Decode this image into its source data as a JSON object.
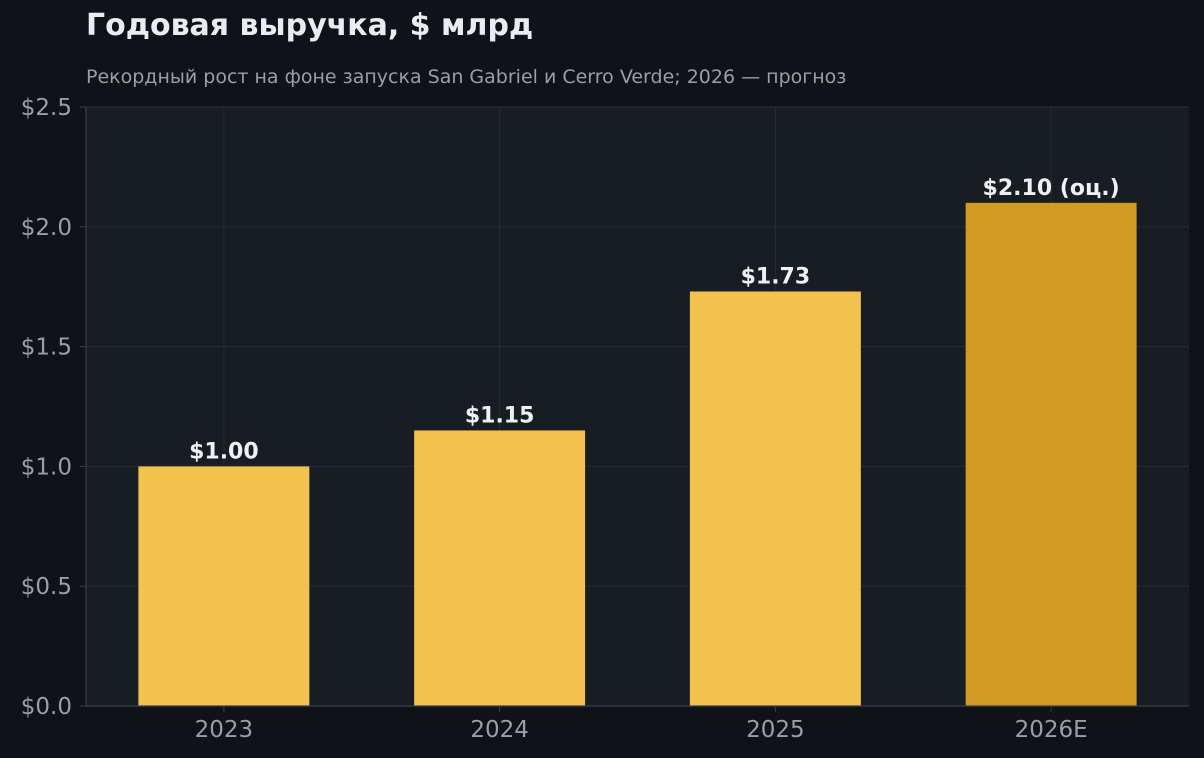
{
  "chart_data": {
    "type": "bar",
    "title": "Годовая выручка, $ млрд",
    "subtitle": "Рекордный рост на фоне запуска San Gabriel и Cerro Verde; 2026 — прогноз",
    "categories": [
      "2023",
      "2024",
      "2025",
      "2026E"
    ],
    "values": [
      1.0,
      1.15,
      1.73,
      2.1
    ],
    "value_labels": [
      "$1.00",
      "$1.15",
      "$1.73",
      "$2.10 (оц.)"
    ],
    "forecast": [
      false,
      false,
      false,
      true
    ],
    "ylim": [
      0,
      2.5
    ],
    "yticks": [
      0,
      0.5,
      1.0,
      1.5,
      2.0,
      2.5
    ],
    "ytick_labels": [
      "$0.0",
      "$0.5",
      "$1.0",
      "$1.5",
      "$2.0",
      "$2.5"
    ],
    "xlabel": "",
    "ylabel": "",
    "grid": true,
    "colors": {
      "actual": "#f2c14e",
      "forecast": "#d19b22",
      "page_background": "#0f1317",
      "plot_background": "#181c23",
      "grid": "#262b33",
      "tick_label": "#9a9fa7",
      "value_label": "#eef1f4"
    }
  }
}
